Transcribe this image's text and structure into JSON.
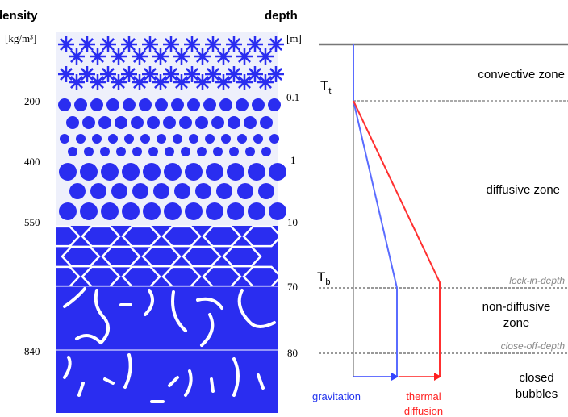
{
  "left": {
    "density_title": "density",
    "density_unit": "[kg/m³]",
    "density_labels": [
      "200",
      "400",
      "550",
      "840"
    ],
    "depth_title": "depth",
    "depth_unit": "[m]",
    "depth_labels": [
      "0.1",
      "1",
      "10",
      "70",
      "80"
    ]
  },
  "right": {
    "zones": [
      "convective zone",
      "diffusive zone",
      "non-diffusive zone",
      "closed bubbles"
    ],
    "t_top": "T",
    "t_top_sub": "t",
    "t_bottom": "T",
    "t_bottom_sub": "b",
    "lock_in": "lock-in-depth",
    "close_off": "close-off-depth",
    "gravitation": "gravitation",
    "thermal": "thermal diffusion"
  }
}
